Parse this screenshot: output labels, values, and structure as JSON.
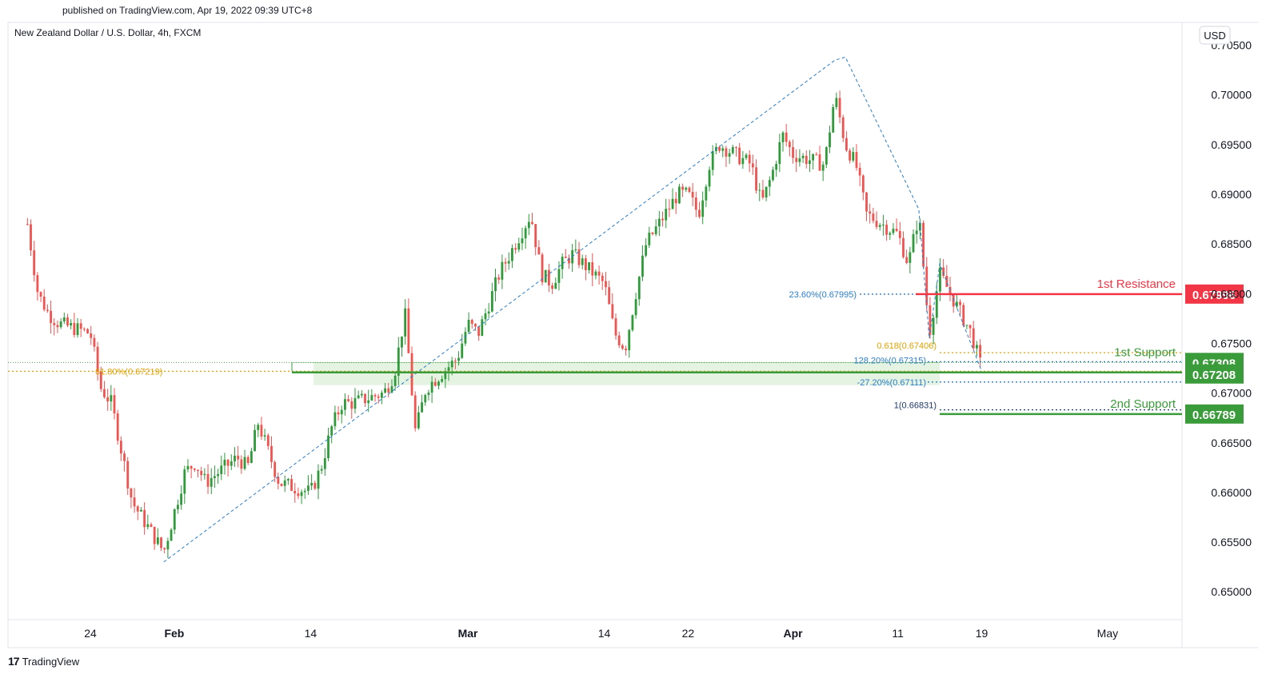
{
  "header": {
    "published": "published on TradingView.com, Apr 19, 2022 09:39 UTC+8",
    "symbol": "New Zealand Dollar / U.S. Dollar, 4h, FXCM",
    "currency_button": "USD"
  },
  "footer": {
    "brand_logo": "17",
    "brand": "TradingView"
  },
  "colors": {
    "up": "#26a69a",
    "up_candle": "#2e9a3a",
    "down_candle": "#f05350",
    "resistance": "#f23645",
    "support": "#3a9b3a",
    "fib": "#2b7dc9",
    "fib_gold": "#e0a000",
    "zone": "#dff0dc"
  },
  "chart_data": {
    "type": "candlestick",
    "title": "New Zealand Dollar / U.S. Dollar, 4h, FXCM",
    "y_axis_ticks": [
      "0.70500",
      "0.70000",
      "0.69500",
      "0.69000",
      "0.68500",
      "0.68000",
      "0.67500",
      "0.67000",
      "0.66500",
      "0.66000",
      "0.65500",
      "0.65000"
    ],
    "x_axis_ticks": [
      "24",
      "Feb",
      "14",
      "Mar",
      "14",
      "22",
      "Apr",
      "11",
      "19",
      "May"
    ],
    "ylim": [
      0.6472,
      0.7073
    ],
    "price_path": [
      [
        "2022-01-18",
        0.687
      ],
      [
        "2022-01-19",
        0.68
      ],
      [
        "2022-01-20",
        0.678
      ],
      [
        "2022-01-21",
        0.677
      ],
      [
        "2022-01-24",
        0.676
      ],
      [
        "2022-01-25",
        0.6705
      ],
      [
        "2022-01-26",
        0.669
      ],
      [
        "2022-01-27",
        0.664
      ],
      [
        "2022-01-28",
        0.659
      ],
      [
        "2022-01-31",
        0.654
      ],
      [
        "2022-02-01",
        0.658
      ],
      [
        "2022-02-02",
        0.662
      ],
      [
        "2022-02-03",
        0.663
      ],
      [
        "2022-02-04",
        0.661
      ],
      [
        "2022-02-07",
        0.6635
      ],
      [
        "2022-02-08",
        0.6625
      ],
      [
        "2022-02-09",
        0.667
      ],
      [
        "2022-02-10",
        0.664
      ],
      [
        "2022-02-11",
        0.661
      ],
      [
        "2022-02-14",
        0.66
      ],
      [
        "2022-02-15",
        0.6625
      ],
      [
        "2022-02-16",
        0.6665
      ],
      [
        "2022-02-17",
        0.669
      ],
      [
        "2022-02-18",
        0.669
      ],
      [
        "2022-02-21",
        0.67
      ],
      [
        "2022-02-22",
        0.672
      ],
      [
        "2022-02-23",
        0.678
      ],
      [
        "2022-02-24",
        0.666
      ],
      [
        "2022-02-25",
        0.6705
      ],
      [
        "2022-02-28",
        0.6735
      ],
      [
        "2022-03-01",
        0.677
      ],
      [
        "2022-03-02",
        0.676
      ],
      [
        "2022-03-03",
        0.679
      ],
      [
        "2022-03-04",
        0.682
      ],
      [
        "2022-03-07",
        0.688
      ],
      [
        "2022-03-08",
        0.682
      ],
      [
        "2022-03-09",
        0.681
      ],
      [
        "2022-03-10",
        0.683
      ],
      [
        "2022-03-11",
        0.684
      ],
      [
        "2022-03-14",
        0.681
      ],
      [
        "2022-03-15",
        0.676
      ],
      [
        "2022-03-16",
        0.6745
      ],
      [
        "2022-03-17",
        0.68
      ],
      [
        "2022-03-18",
        0.685
      ],
      [
        "2022-03-21",
        0.69
      ],
      [
        "2022-03-22",
        0.69
      ],
      [
        "2022-03-23",
        0.688
      ],
      [
        "2022-03-24",
        0.693
      ],
      [
        "2022-03-25",
        0.695
      ],
      [
        "2022-03-28",
        0.693
      ],
      [
        "2022-03-29",
        0.689
      ],
      [
        "2022-03-30",
        0.692
      ],
      [
        "2022-03-31",
        0.696
      ],
      [
        "2022-04-01",
        0.694
      ],
      [
        "2022-04-04",
        0.693
      ],
      [
        "2022-04-05",
        0.7
      ],
      [
        "2022-04-06",
        0.695
      ],
      [
        "2022-04-07",
        0.693
      ],
      [
        "2022-04-08",
        0.688
      ],
      [
        "2022-04-11",
        0.686
      ],
      [
        "2022-04-12",
        0.683
      ],
      [
        "2022-04-13",
        0.688
      ],
      [
        "2022-04-14",
        0.676
      ],
      [
        "2022-04-15",
        0.682
      ],
      [
        "2022-04-18",
        0.676
      ],
      [
        "2022-04-19",
        0.6724
      ]
    ],
    "horizontal_levels": [
      {
        "label": "1st Resistance",
        "price": 0.67996,
        "price_label": "0.67996",
        "color": "#f23645"
      },
      {
        "label": "1st Support",
        "price": 0.67308,
        "price_label": "0.67308",
        "color": "#3a9b3a"
      },
      {
        "label": "",
        "price": 0.67208,
        "price_label": "0.67208",
        "color": "#3a9b3a"
      },
      {
        "label": "2nd Support",
        "price": 0.66789,
        "price_label": "0.66789",
        "color": "#3a9b3a"
      }
    ],
    "fib_labels": [
      {
        "text": "23.60%(0.67995)",
        "price": 0.67995
      },
      {
        "text": "0.618(0.67406)",
        "price": 0.67406
      },
      {
        "text": "61.80%(0.67219)",
        "price": 0.67219
      },
      {
        "text": "128.20%(0.67315)",
        "price": 0.67315
      },
      {
        "text": "-27.20%(0.67111)",
        "price": 0.67111
      },
      {
        "text": "1(0.66831)",
        "price": 0.66831
      }
    ]
  }
}
